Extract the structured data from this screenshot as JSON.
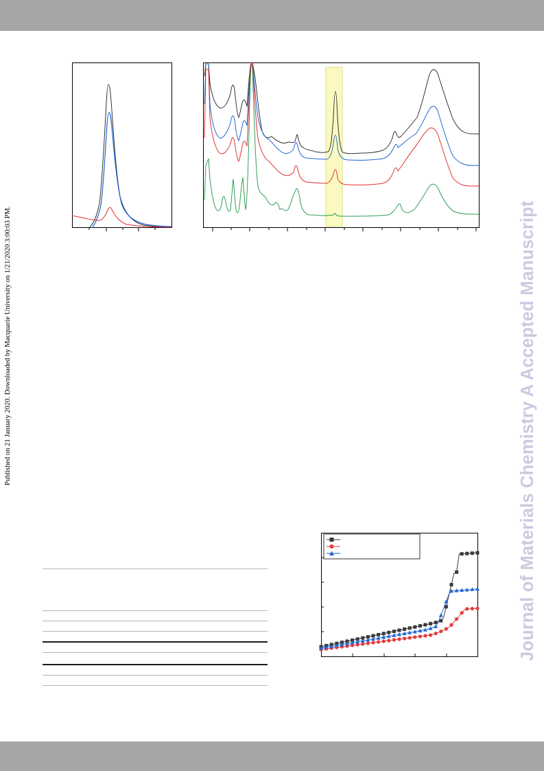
{
  "header_band": {
    "color": "#a6a6a6"
  },
  "footer_band": {
    "color": "#a6a6a6"
  },
  "sidebar_notice": "Published on 21 January 2020. Downloaded by Macquarie University on 1/21/2020 3:00:03 PM.",
  "watermark": "Journal of Materials Chemistry A Accepted Manuscript",
  "figures": {
    "left_spectrum": {
      "series_colors": [
        "#333333",
        "#1f66d1",
        "#e03030"
      ]
    },
    "right_spectrum": {
      "series_colors": [
        "#333333",
        "#1f66d1",
        "#e03030",
        "#2e9e55"
      ],
      "highlight_color": "#fafac0"
    },
    "isotherm": {
      "series_colors": [
        "#3a3a3a",
        "#e33b3b",
        "#1f66d1"
      ],
      "series_markers": [
        "square",
        "circle",
        "triangle"
      ]
    }
  },
  "table": {
    "rule_count": 9
  }
}
